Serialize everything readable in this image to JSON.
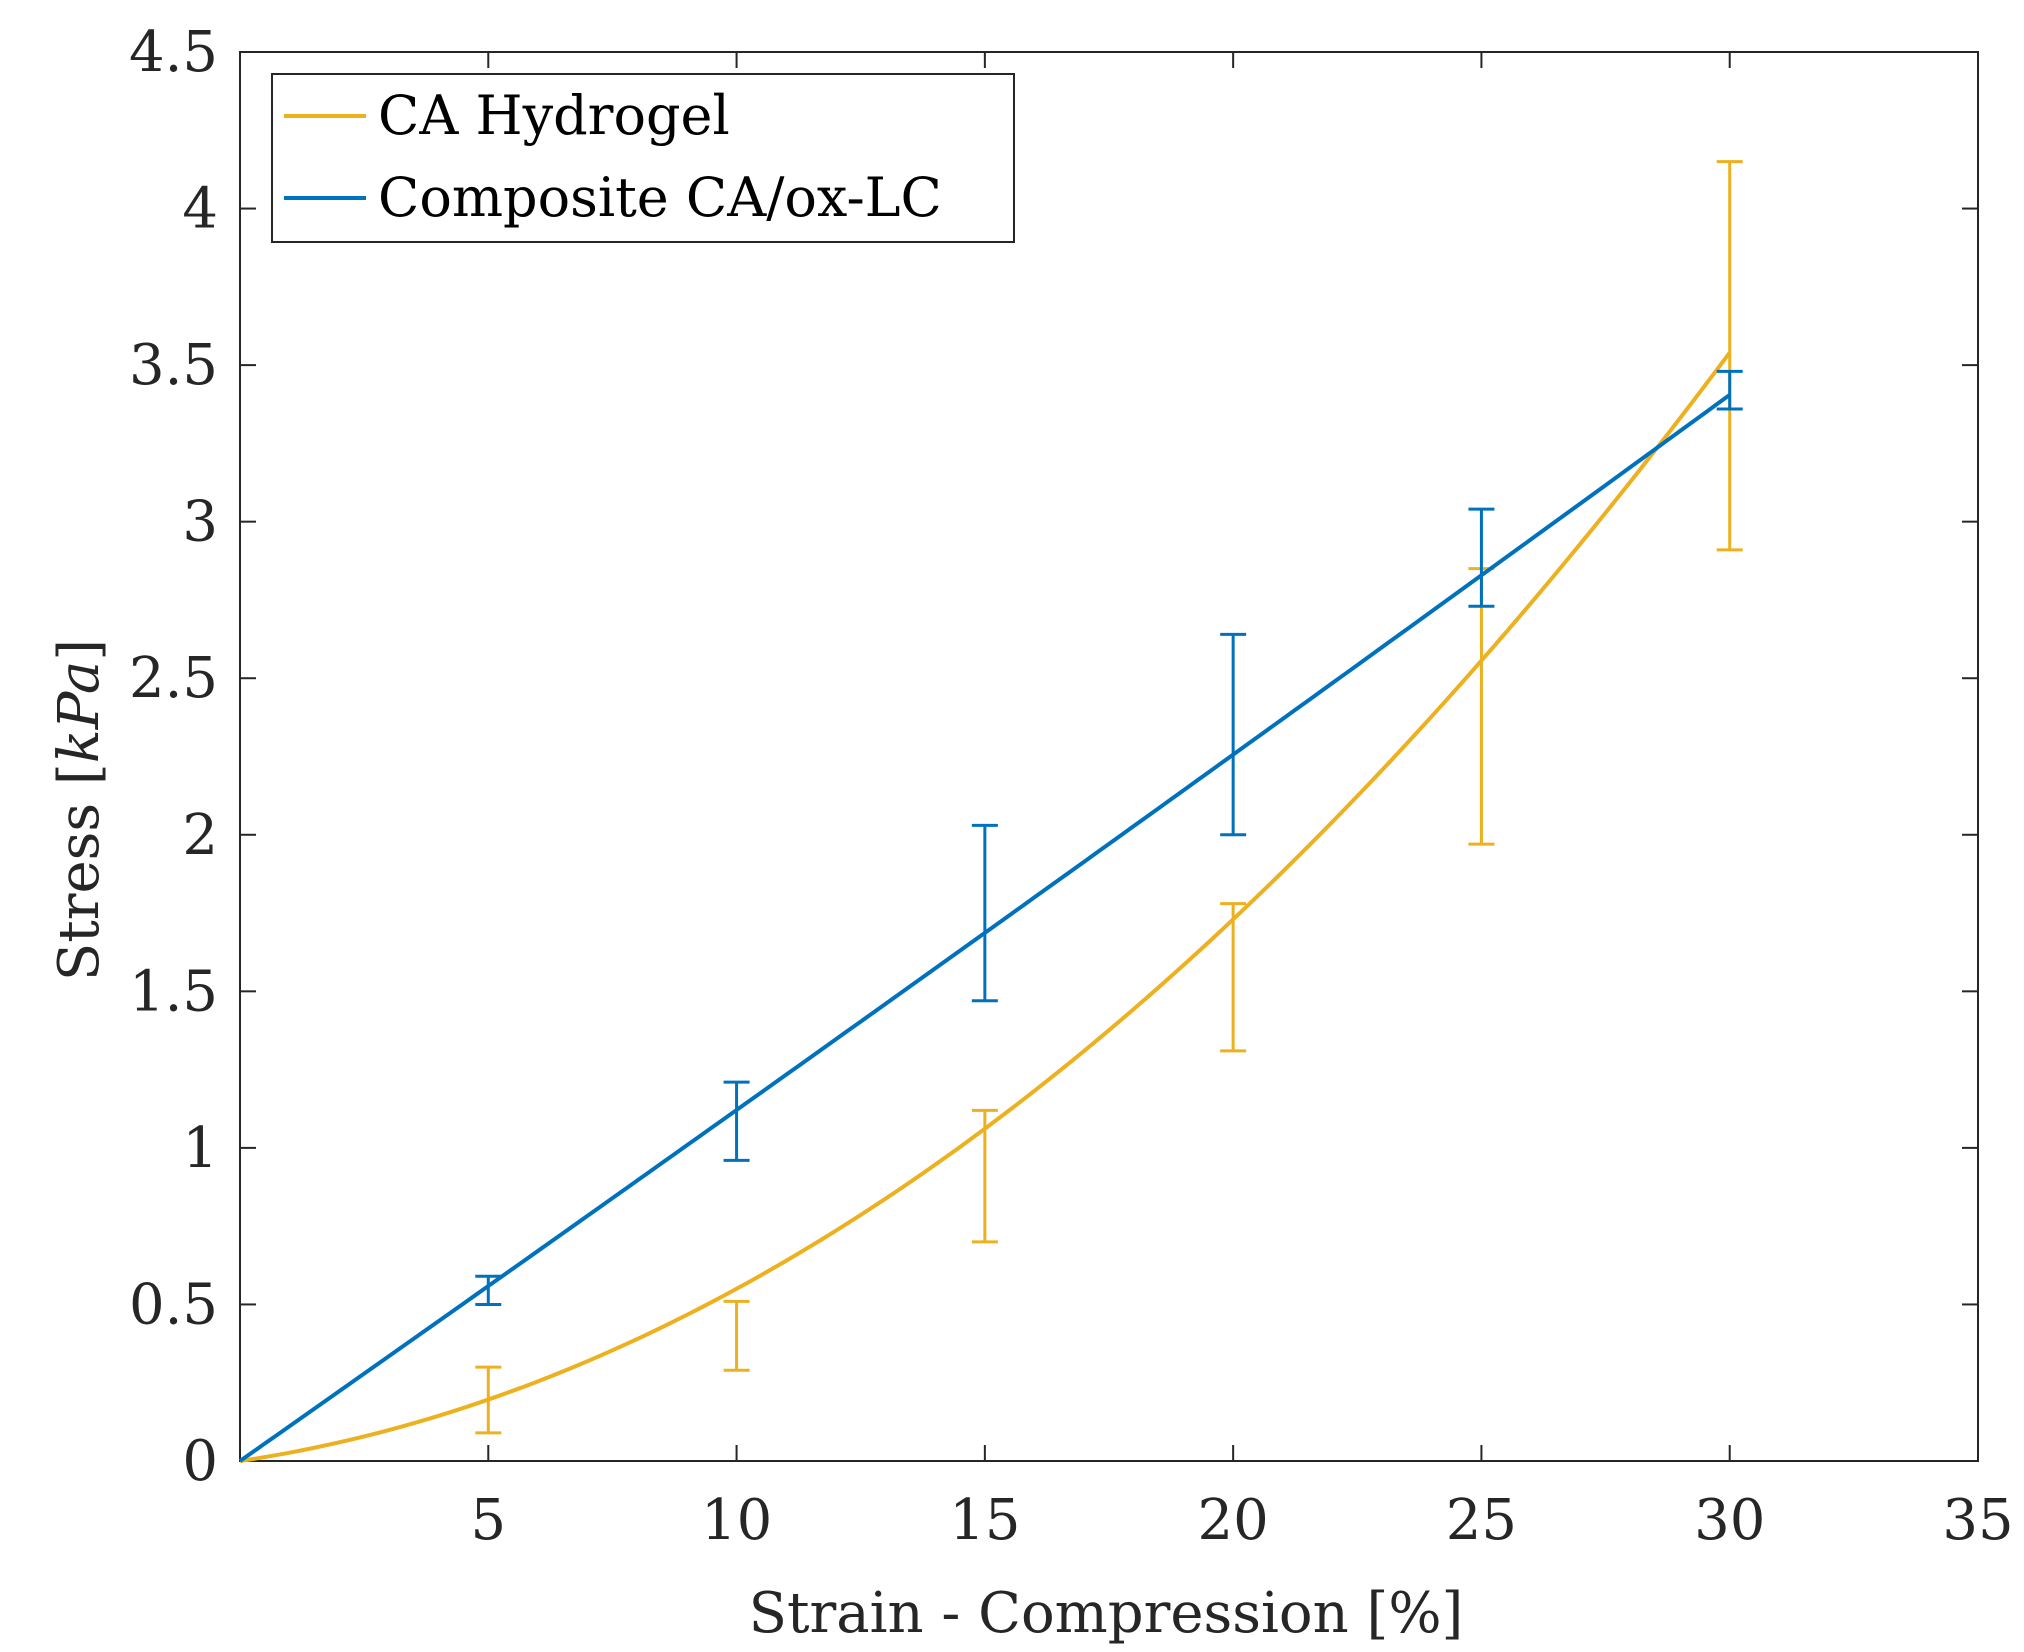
{
  "chart_data": {
    "type": "line",
    "title": "",
    "xlabel": "Strain - Compression [%]",
    "ylabel_parts": {
      "prefix": "Stress [",
      "unit": "kPa",
      "suffix": "]"
    },
    "xlim": [
      0,
      35
    ],
    "ylim": [
      0,
      4.5
    ],
    "xticks": [
      5,
      10,
      15,
      20,
      25,
      30,
      35
    ],
    "xtick_labels": [
      "5",
      "10",
      "15",
      "20",
      "25",
      "30",
      "35"
    ],
    "yticks": [
      0,
      0.5,
      1,
      1.5,
      2,
      2.5,
      3,
      3.5,
      4,
      4.5
    ],
    "ytick_labels": [
      "0",
      "0.5",
      "1",
      "1.5",
      "2",
      "2.5",
      "3",
      "3.5",
      "4",
      "4.5"
    ],
    "legend_position": "top-left",
    "series": [
      {
        "name": "CA Hydrogel",
        "color": "#EDB120",
        "fit": "quadratic",
        "coefficients": [
          0.0,
          0.0235,
          0.00315
        ],
        "x_range": [
          0,
          30
        ],
        "errorbars": [
          {
            "x": 5,
            "low": 0.09,
            "high": 0.3
          },
          {
            "x": 10,
            "low": 0.29,
            "high": 0.51
          },
          {
            "x": 15,
            "low": 0.7,
            "high": 1.12
          },
          {
            "x": 20,
            "low": 1.31,
            "high": 1.78
          },
          {
            "x": 25,
            "low": 1.97,
            "high": 2.85
          },
          {
            "x": 30,
            "low": 2.91,
            "high": 4.15
          }
        ]
      },
      {
        "name": "Composite CA/ox-LC",
        "color": "#0072BD",
        "fit": "quadratic",
        "coefficients": [
          0.0,
          0.1114,
          7e-05
        ],
        "x_range": [
          0,
          30
        ],
        "errorbars": [
          {
            "x": 5,
            "low": 0.5,
            "high": 0.59
          },
          {
            "x": 10,
            "low": 0.96,
            "high": 1.21
          },
          {
            "x": 15,
            "low": 1.47,
            "high": 2.03
          },
          {
            "x": 20,
            "low": 2.0,
            "high": 2.64
          },
          {
            "x": 25,
            "low": 2.73,
            "high": 3.04
          },
          {
            "x": 30,
            "low": 3.36,
            "high": 3.48
          }
        ]
      }
    ]
  }
}
